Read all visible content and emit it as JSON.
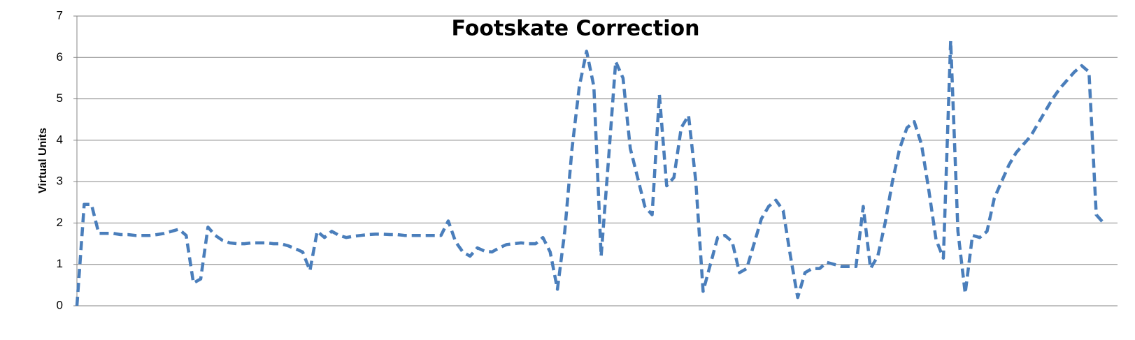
{
  "chart_data": {
    "type": "line",
    "title": "Footskate Correction",
    "y_label": "Virtual Units",
    "categories": [
      null,
      null,
      null,
      null,
      null,
      null,
      null,
      null,
      null,
      null,
      null,
      null,
      null,
      null,
      null,
      null,
      null,
      null,
      null,
      null,
      null,
      null,
      null,
      null,
      null,
      null,
      null,
      null,
      null,
      null,
      null,
      null,
      null,
      null,
      null,
      null,
      null,
      null,
      null,
      null,
      null,
      null,
      null,
      null,
      null,
      null,
      null,
      null,
      null,
      null,
      null,
      null,
      null,
      null,
      null,
      null,
      null,
      null,
      null,
      null,
      null,
      null,
      null,
      null,
      null,
      null,
      null,
      null,
      null,
      null,
      null,
      null,
      null,
      null,
      null,
      null,
      null,
      null,
      null,
      null,
      null,
      null,
      null,
      null,
      null,
      null,
      null,
      null,
      null,
      null,
      null,
      null,
      null,
      null,
      null,
      null,
      null,
      null,
      null,
      null,
      null,
      null,
      null,
      null,
      null,
      null,
      null,
      null,
      null,
      null,
      null,
      null,
      null,
      null,
      null,
      null,
      null,
      null,
      null,
      null,
      null,
      null,
      null,
      null,
      null,
      null,
      null,
      null,
      null,
      null,
      null,
      null,
      null,
      null,
      null,
      null,
      null,
      null,
      null,
      null,
      null,
      null
    ],
    "values": [
      0,
      2.45,
      2.45,
      1.75,
      1.75,
      1.75,
      1.72,
      1.72,
      1.7,
      1.7,
      1.7,
      1.72,
      1.75,
      1.8,
      1.85,
      1.7,
      0.55,
      0.65,
      1.9,
      1.7,
      1.58,
      1.52,
      1.5,
      1.5,
      1.52,
      1.52,
      1.52,
      1.5,
      1.5,
      1.45,
      1.38,
      1.3,
      0.85,
      1.8,
      1.65,
      1.8,
      1.7,
      1.65,
      1.68,
      1.7,
      1.72,
      1.73,
      1.73,
      1.72,
      1.72,
      1.7,
      1.7,
      1.7,
      1.7,
      1.7,
      1.7,
      2.05,
      1.55,
      1.3,
      1.2,
      1.4,
      1.32,
      1.3,
      1.4,
      1.48,
      1.5,
      1.52,
      1.5,
      1.5,
      1.65,
      1.3,
      0.4,
      1.8,
      3.8,
      5.3,
      6.15,
      5.3,
      1.2,
      3.5,
      5.9,
      5.5,
      3.8,
      3.1,
      2.4,
      2.2,
      5.1,
      2.9,
      3.1,
      4.3,
      4.6,
      3.0,
      0.35,
      1.0,
      1.65,
      1.7,
      1.55,
      0.8,
      0.9,
      1.5,
      2.1,
      2.4,
      2.55,
      2.3,
      1.2,
      0.2,
      0.8,
      0.9,
      0.9,
      1.05,
      1.0,
      0.95,
      0.95,
      0.95,
      2.4,
      0.9,
      1.2,
      2.0,
      3.0,
      3.8,
      4.3,
      4.45,
      3.9,
      2.8,
      1.6,
      1.15,
      6.4,
      1.8,
      0.3,
      1.7,
      1.65,
      1.8,
      2.6,
      3.0,
      3.4,
      3.7,
      3.9,
      4.1,
      4.4,
      4.7,
      5.0,
      5.25,
      5.45,
      5.65,
      5.8,
      5.65,
      2.2,
      2.0
    ],
    "color": "#4a7ebb",
    "line_style": "dashed",
    "ylim": [
      0,
      7
    ],
    "yticks": [
      0,
      1,
      2,
      3,
      4,
      5,
      6,
      7
    ],
    "grid": true
  }
}
